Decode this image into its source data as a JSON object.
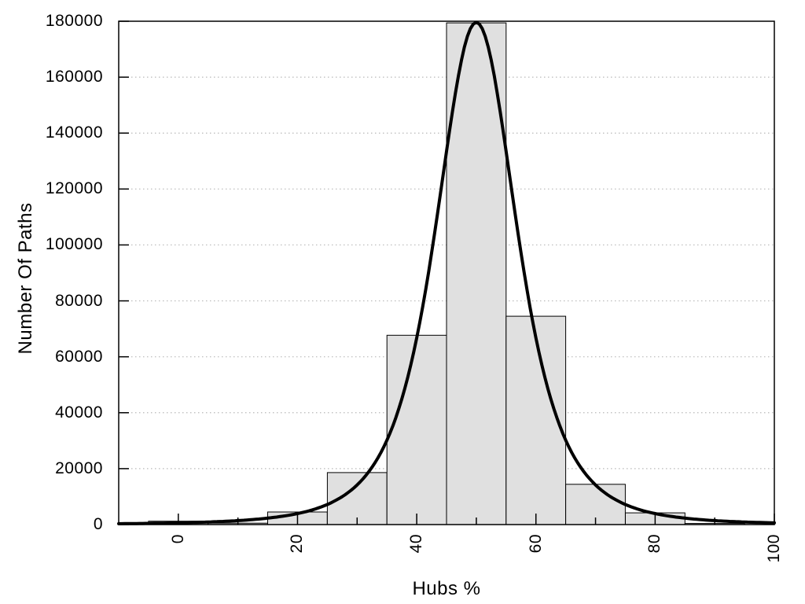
{
  "chart_data": {
    "type": "histogram-with-fit-line",
    "title": "",
    "xlabel": "Hubs %",
    "ylabel": "Number Of Paths",
    "xlim": [
      -10,
      100
    ],
    "ylim": [
      0,
      180000
    ],
    "x_ticks_major": [
      0,
      20,
      40,
      60,
      80,
      100
    ],
    "x_ticks_minor": [
      10,
      30,
      50,
      70,
      90
    ],
    "y_ticks": [
      0,
      20000,
      40000,
      60000,
      80000,
      100000,
      120000,
      140000,
      160000,
      180000
    ],
    "grid": {
      "horizontal": true,
      "vertical": false,
      "style": "dotted"
    },
    "legend": "none",
    "histogram": {
      "bin_width": 10,
      "bin_centers": [
        0,
        10,
        20,
        30,
        40,
        50,
        60,
        70,
        80,
        90,
        100
      ],
      "counts": [
        1200,
        500,
        4500,
        18600,
        67700,
        179400,
        74500,
        14400,
        4200,
        400,
        0
      ]
    },
    "fit_curve": {
      "type": "pearson7-bell",
      "formula": "y = A / (1 + ((x - c) / w)^2)^p",
      "amplitude": 179600,
      "center": 50,
      "half_width": 12.5,
      "power": 2
    },
    "colors": {
      "background": "#ffffff",
      "bar_fill": "#e0e0e0",
      "bar_border": "#000000",
      "curve": "#000000",
      "grid": "#b8b8b8",
      "border": "#000000",
      "text": "#000000"
    }
  }
}
